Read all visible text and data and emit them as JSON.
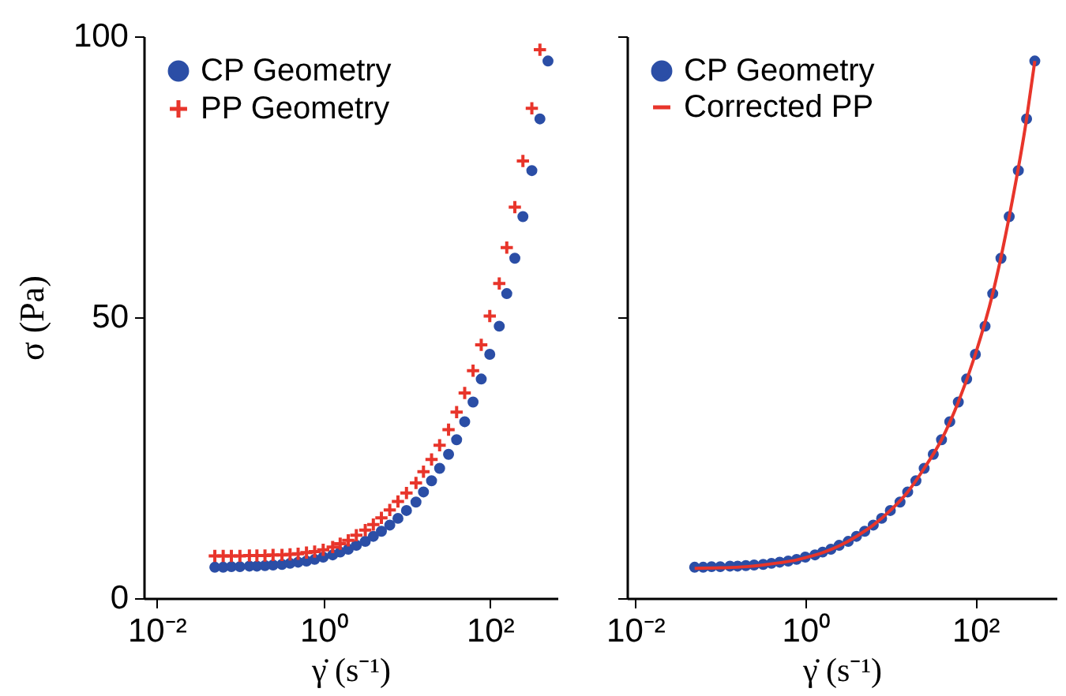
{
  "chart_data": [
    {
      "type": "scatter",
      "xlabel": "γ̇ (s⁻¹)",
      "ylabel": "σ (Pa)",
      "log": "x",
      "legend": "top left",
      "grid": false,
      "xlim": [
        0.007,
        650
      ],
      "xticks": [
        {
          "value": 0.01,
          "label": "10⁻²"
        },
        {
          "value": 1,
          "label": "10⁰"
        },
        {
          "value": 100,
          "label": "10²"
        }
      ],
      "ylim": [
        0,
        100
      ],
      "yticks": [
        0,
        50,
        100
      ],
      "series": [
        {
          "name": "CP Geometry",
          "color": "#2b4ea6",
          "marker": "circle",
          "x": [
            0.05,
            0.063,
            0.079,
            0.1,
            0.13,
            0.16,
            0.2,
            0.25,
            0.32,
            0.4,
            0.5,
            0.63,
            0.79,
            1,
            1.3,
            1.6,
            2,
            2.5,
            3.2,
            4,
            5,
            6.3,
            7.9,
            10,
            13,
            16,
            20,
            25,
            32,
            40,
            50,
            63,
            79,
            100,
            130,
            160,
            200,
            250,
            320,
            400,
            500
          ],
          "values": [
            5.5,
            5.5,
            5.6,
            5.6,
            5.7,
            5.7,
            5.8,
            5.9,
            6.0,
            6.2,
            6.4,
            6.6,
            6.9,
            7.3,
            7.7,
            8.2,
            8.7,
            9.4,
            10.1,
            11.0,
            11.9,
            13.0,
            14.2,
            15.6,
            17.1,
            18.9,
            20.9,
            23.1,
            25.6,
            28.2,
            31.4,
            34.9,
            39.0,
            43.4,
            48.4,
            54.2,
            60.5,
            67.9,
            76.1,
            85.3,
            95.6
          ]
        },
        {
          "name": "PP Geometry",
          "color": "#e8352b",
          "marker": "cross",
          "x": [
            0.05,
            0.063,
            0.079,
            0.1,
            0.13,
            0.16,
            0.2,
            0.25,
            0.32,
            0.4,
            0.5,
            0.63,
            0.79,
            1,
            1.3,
            1.6,
            2,
            2.5,
            3.2,
            4,
            5,
            6.3,
            7.9,
            10,
            13,
            16,
            20,
            25,
            32,
            40,
            50,
            63,
            79,
            100,
            130,
            160,
            200,
            250,
            320,
            400
          ],
          "values": [
            7.5,
            7.5,
            7.5,
            7.5,
            7.6,
            7.6,
            7.6,
            7.7,
            7.7,
            7.8,
            7.9,
            8.1,
            8.3,
            8.6,
            9.1,
            9.7,
            10.3,
            11.2,
            12.1,
            13.1,
            14.3,
            15.7,
            17.2,
            18.7,
            20.5,
            22.5,
            24.7,
            27.2,
            30.0,
            33.1,
            36.5,
            40.5,
            45.1,
            50.2,
            56.0,
            62.4,
            69.6,
            77.8,
            87.2,
            97.6
          ]
        }
      ]
    },
    {
      "type": "scatter",
      "xlabel": "γ̇ (s⁻¹)",
      "log": "x",
      "legend": "top left",
      "grid": false,
      "tick_labels": "x",
      "xlim": [
        0.008,
        900
      ],
      "xticks": [
        {
          "value": 0.01,
          "label": "10⁻²"
        },
        {
          "value": 1,
          "label": "10⁰"
        },
        {
          "value": 100,
          "label": "10²"
        }
      ],
      "ylim": [
        0,
        100
      ],
      "yticks": [
        0,
        50,
        100
      ],
      "series": [
        {
          "name": "CP Geometry",
          "color": "#2b4ea6",
          "marker": "circle",
          "x": [
            0.05,
            0.063,
            0.079,
            0.1,
            0.13,
            0.16,
            0.2,
            0.25,
            0.32,
            0.4,
            0.5,
            0.63,
            0.79,
            1,
            1.3,
            1.6,
            2,
            2.5,
            3.2,
            4,
            5,
            6.3,
            7.9,
            10,
            13,
            16,
            20,
            25,
            32,
            40,
            50,
            63,
            79,
            100,
            130,
            160,
            200,
            250,
            320,
            400,
            500
          ],
          "values": [
            5.5,
            5.5,
            5.6,
            5.6,
            5.7,
            5.7,
            5.8,
            5.9,
            6.0,
            6.2,
            6.4,
            6.6,
            6.9,
            7.3,
            7.7,
            8.2,
            8.7,
            9.4,
            10.1,
            11.0,
            11.9,
            13.0,
            14.2,
            15.6,
            17.1,
            18.9,
            20.9,
            23.1,
            25.6,
            28.2,
            31.4,
            34.9,
            39.0,
            43.4,
            48.4,
            54.2,
            60.5,
            67.9,
            76.1,
            85.3,
            95.6
          ]
        },
        {
          "name": "Corrected PP",
          "type": "line",
          "color": "#e8352b",
          "line_style": "solid",
          "x": [
            0.05,
            0.1,
            0.2,
            0.32,
            0.5,
            0.79,
            1,
            1.6,
            2.5,
            4,
            6.3,
            10,
            16,
            25,
            40,
            63,
            100,
            160,
            250,
            400,
            500
          ],
          "values": [
            5.3,
            5.4,
            5.6,
            5.9,
            6.3,
            6.8,
            7.2,
            8.1,
            9.3,
            11.0,
            13.0,
            15.6,
            18.9,
            23.1,
            28.2,
            34.9,
            43.4,
            54.2,
            67.9,
            85.3,
            95.6
          ]
        }
      ]
    }
  ]
}
